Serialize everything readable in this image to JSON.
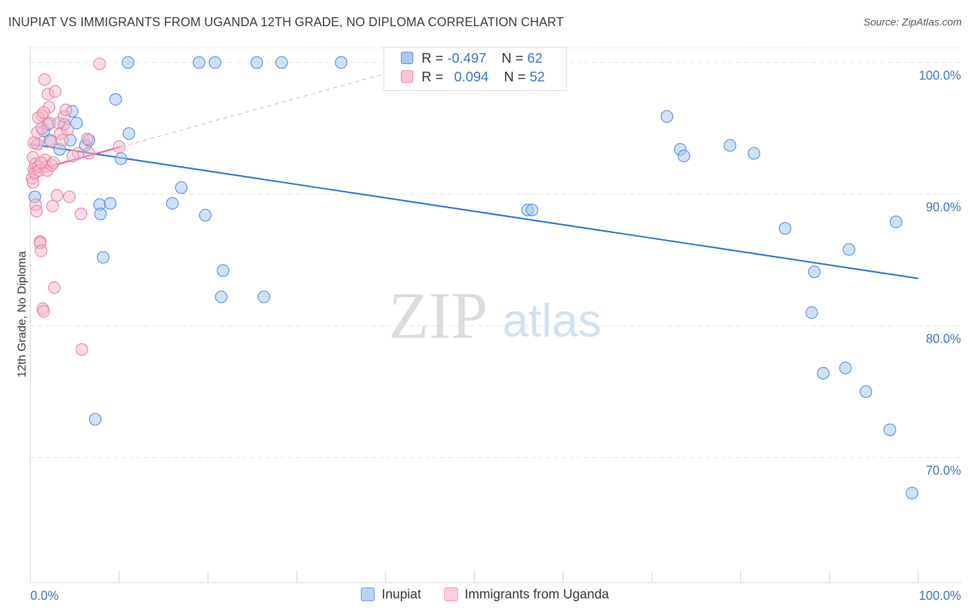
{
  "title": "INUPIAT VS IMMIGRANTS FROM UGANDA 12TH GRADE, NO DIPLOMA CORRELATION CHART",
  "source": "Source: ZipAtlas.com",
  "watermark": {
    "zip": "ZIP",
    "atlas": "atlas"
  },
  "colors": {
    "inupiat_fill": "#aac8f0",
    "inupiat_stroke": "#5b8fd6",
    "inupiat_line": "#2f6fd0",
    "uganda_fill": "#f7b8cc",
    "uganda_stroke": "#e586a6",
    "uganda_line": "#e0608c",
    "grid": "#e2e2e2",
    "tick_label": "#3d72c4"
  },
  "legend": {
    "rows": [
      {
        "r_label": "R = ",
        "r_value": "-0.497",
        "n_label": "N = ",
        "n_value": "62"
      },
      {
        "r_label": "R = ",
        "r_value": "0.094",
        "n_label": "N = ",
        "n_value": "52"
      }
    ]
  },
  "chart_data": {
    "type": "scatter",
    "title": "INUPIAT VS IMMIGRANTS FROM UGANDA 12TH GRADE, NO DIPLOMA CORRELATION CHART",
    "xlabel": "",
    "ylabel": "12th Grade, No Diploma",
    "xlim": [
      0,
      100
    ],
    "ylim": [
      60.5,
      101.5
    ],
    "x_tick_labels": [
      "0.0%",
      "100.0%"
    ],
    "y_ticks": [
      70,
      80,
      90,
      100
    ],
    "y_tick_labels": [
      "70.0%",
      "80.0%",
      "90.0%",
      "100.0%"
    ],
    "grid": true,
    "legend_placement": "top-center",
    "series": [
      {
        "name": "Inupiat",
        "r": -0.497,
        "n": 62,
        "trend": {
          "x": [
            0,
            100
          ],
          "y": [
            93.8,
            83.6
          ]
        },
        "points": [
          [
            0.5,
            89.8
          ],
          [
            0.8,
            93.8
          ],
          [
            1.5,
            94.8
          ],
          [
            2.0,
            95.3
          ],
          [
            2.2,
            94.1
          ],
          [
            3.3,
            93.4
          ],
          [
            3.8,
            95.3
          ],
          [
            4.5,
            94.1
          ],
          [
            4.7,
            96.3
          ],
          [
            5.2,
            95.4
          ],
          [
            6.2,
            93.7
          ],
          [
            6.6,
            94.1
          ],
          [
            7.3,
            72.9
          ],
          [
            7.8,
            89.2
          ],
          [
            7.9,
            88.5
          ],
          [
            8.2,
            85.2
          ],
          [
            9.0,
            89.3
          ],
          [
            9.6,
            97.2
          ],
          [
            10.2,
            92.7
          ],
          [
            11.1,
            94.6
          ],
          [
            11.0,
            100.0
          ],
          [
            16.0,
            89.3
          ],
          [
            17.0,
            90.5
          ],
          [
            19.0,
            100.0
          ],
          [
            19.7,
            88.4
          ],
          [
            20.8,
            100.0
          ],
          [
            21.5,
            82.2
          ],
          [
            21.7,
            84.2
          ],
          [
            25.5,
            100.0
          ],
          [
            26.3,
            82.2
          ],
          [
            28.3,
            100.0
          ],
          [
            35.0,
            100.0
          ],
          [
            47.3,
            100.0
          ],
          [
            52.5,
            100.0
          ],
          [
            52.0,
            100.0
          ],
          [
            52.2,
            100.0
          ],
          [
            52.4,
            100.0
          ],
          [
            52.6,
            100.0
          ],
          [
            52.8,
            100.0
          ],
          [
            52.1,
            100.0
          ],
          [
            52.3,
            100.0
          ],
          [
            52.7,
            100.0
          ],
          [
            52.9,
            100.0
          ],
          [
            52.45,
            100.0
          ],
          [
            52.55,
            100.0
          ],
          [
            56.0,
            88.8
          ],
          [
            56.5,
            88.8
          ],
          [
            71.7,
            95.9
          ],
          [
            73.2,
            93.4
          ],
          [
            73.6,
            92.9
          ],
          [
            78.8,
            93.7
          ],
          [
            81.5,
            93.1
          ],
          [
            85.0,
            87.4
          ],
          [
            88.0,
            81.0
          ],
          [
            88.3,
            84.1
          ],
          [
            89.3,
            76.4
          ],
          [
            91.8,
            76.8
          ],
          [
            92.2,
            85.8
          ],
          [
            94.1,
            75.0
          ],
          [
            96.8,
            72.1
          ],
          [
            97.5,
            87.9
          ],
          [
            99.3,
            67.3
          ]
        ]
      },
      {
        "name": "Immigrants from Uganda",
        "r": 0.094,
        "n": 52,
        "trend": {
          "x": [
            0,
            10.2
          ],
          "y": [
            91.7,
            93.6
          ]
        },
        "points": [
          [
            0.2,
            91.2
          ],
          [
            0.3,
            90.9
          ],
          [
            0.3,
            92.8
          ],
          [
            0.4,
            91.9
          ],
          [
            0.5,
            91.6
          ],
          [
            0.6,
            92.3
          ],
          [
            0.6,
            89.2
          ],
          [
            0.7,
            88.7
          ],
          [
            0.8,
            94.7
          ],
          [
            0.8,
            93.8
          ],
          [
            0.9,
            92.1
          ],
          [
            1.0,
            91.8
          ],
          [
            1.1,
            86.4
          ],
          [
            1.1,
            86.3
          ],
          [
            1.2,
            85.7
          ],
          [
            1.3,
            96.0
          ],
          [
            1.3,
            95.0
          ],
          [
            1.4,
            81.3
          ],
          [
            1.5,
            81.1
          ],
          [
            1.6,
            98.7
          ],
          [
            1.7,
            92.6
          ],
          [
            1.8,
            92.1
          ],
          [
            1.9,
            91.8
          ],
          [
            2.0,
            97.6
          ],
          [
            2.1,
            96.6
          ],
          [
            2.2,
            95.4
          ],
          [
            2.3,
            94.0
          ],
          [
            2.4,
            92.2
          ],
          [
            2.5,
            89.1
          ],
          [
            2.7,
            82.9
          ],
          [
            2.8,
            97.8
          ],
          [
            3.0,
            89.9
          ],
          [
            3.2,
            95.4
          ],
          [
            3.4,
            94.6
          ],
          [
            3.6,
            94.1
          ],
          [
            3.8,
            95.9
          ],
          [
            4.0,
            96.4
          ],
          [
            4.2,
            94.9
          ],
          [
            4.4,
            89.8
          ],
          [
            5.4,
            93.1
          ],
          [
            5.7,
            88.5
          ],
          [
            5.8,
            78.2
          ],
          [
            6.4,
            94.2
          ],
          [
            6.6,
            93.1
          ],
          [
            7.8,
            99.9
          ],
          [
            10.0,
            93.6
          ],
          [
            0.4,
            93.9
          ],
          [
            0.9,
            95.8
          ],
          [
            1.5,
            96.2
          ],
          [
            4.8,
            92.9
          ],
          [
            2.6,
            92.4
          ],
          [
            1.2,
            92.4
          ]
        ]
      }
    ]
  },
  "bottom_legend": [
    "Inupiat",
    "Immigrants from Uganda"
  ]
}
